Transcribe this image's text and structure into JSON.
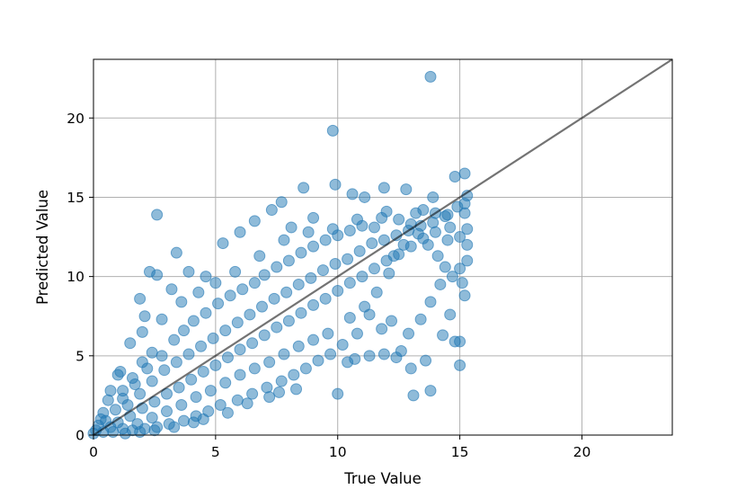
{
  "chart_data": {
    "type": "scatter",
    "title": "",
    "xlabel": "True Value",
    "ylabel": "Predicted Value",
    "xlim": [
      0,
      23.7
    ],
    "ylim": [
      0,
      23.7
    ],
    "x_ticks": [
      0,
      5,
      10,
      15,
      20
    ],
    "y_ticks": [
      0,
      5,
      10,
      15,
      20
    ],
    "grid": true,
    "legend": "none",
    "point_color": "#1f77b4",
    "point_alpha": 0.5,
    "reference_line": {
      "from": [
        0,
        0
      ],
      "to": [
        23.7,
        23.7
      ],
      "color": "#000000",
      "alpha": 0.55
    },
    "series": [
      {
        "values": [
          [
            13.8,
            22.6
          ],
          [
            9.8,
            19.2
          ],
          [
            2.6,
            13.9
          ],
          [
            8.6,
            15.6
          ],
          [
            9.9,
            15.8
          ],
          [
            11.9,
            15.6
          ],
          [
            12.8,
            15.5
          ],
          [
            13.9,
            15.0
          ],
          [
            14.8,
            16.3
          ],
          [
            15.2,
            16.5
          ],
          [
            15.3,
            15.1
          ],
          [
            15.2,
            14.0
          ],
          [
            14.6,
            13.1
          ],
          [
            13.2,
            14.0
          ],
          [
            12.0,
            14.1
          ],
          [
            11.1,
            15.0
          ],
          [
            10.6,
            15.2
          ],
          [
            7.3,
            14.2
          ],
          [
            7.7,
            14.7
          ],
          [
            6.6,
            13.5
          ],
          [
            9.0,
            13.7
          ],
          [
            8.1,
            13.1
          ],
          [
            5.3,
            12.1
          ],
          [
            6.0,
            12.8
          ],
          [
            3.4,
            11.5
          ],
          [
            2.3,
            10.3
          ],
          [
            2.6,
            10.1
          ],
          [
            3.9,
            10.3
          ],
          [
            4.6,
            10.0
          ],
          [
            1.9,
            8.6
          ],
          [
            3.2,
            9.2
          ],
          [
            2.1,
            7.5
          ],
          [
            2.0,
            6.5
          ],
          [
            1.5,
            5.8
          ],
          [
            1.1,
            4.0
          ],
          [
            1.0,
            3.8
          ],
          [
            0.7,
            2.8
          ],
          [
            0.6,
            2.2
          ],
          [
            0.4,
            1.4
          ],
          [
            0.3,
            1.0
          ],
          [
            0.2,
            0.6
          ],
          [
            0.1,
            0.3
          ],
          [
            0.0,
            0.1
          ],
          [
            1.3,
            0.1
          ],
          [
            1.9,
            0.2
          ],
          [
            2.5,
            0.3
          ],
          [
            3.3,
            0.5
          ],
          [
            4.1,
            0.8
          ],
          [
            4.5,
            1.0
          ],
          [
            5.5,
            1.4
          ],
          [
            6.3,
            2.0
          ],
          [
            7.2,
            2.4
          ],
          [
            7.6,
            2.7
          ],
          [
            8.3,
            2.9
          ],
          [
            10.0,
            2.6
          ],
          [
            10.4,
            4.6
          ],
          [
            10.7,
            4.8
          ],
          [
            11.3,
            5.0
          ],
          [
            11.9,
            5.1
          ],
          [
            12.4,
            4.9
          ],
          [
            12.6,
            5.3
          ],
          [
            13.0,
            4.2
          ],
          [
            13.1,
            2.5
          ],
          [
            13.8,
            2.8
          ],
          [
            13.6,
            4.7
          ],
          [
            14.3,
            6.3
          ],
          [
            14.6,
            7.6
          ],
          [
            14.8,
            5.9
          ],
          [
            15.0,
            5.9
          ],
          [
            15.0,
            4.4
          ],
          [
            15.2,
            8.8
          ],
          [
            15.1,
            9.6
          ],
          [
            14.7,
            10.0
          ],
          [
            14.4,
            10.6
          ],
          [
            14.1,
            11.3
          ],
          [
            13.7,
            12.0
          ],
          [
            13.3,
            12.7
          ],
          [
            12.7,
            12.0
          ],
          [
            12.3,
            11.3
          ],
          [
            12.1,
            10.2
          ],
          [
            11.6,
            9.0
          ],
          [
            11.1,
            8.1
          ],
          [
            10.5,
            7.4
          ],
          [
            9.6,
            6.4
          ],
          [
            9.0,
            6.0
          ],
          [
            8.4,
            5.6
          ],
          [
            7.8,
            5.1
          ],
          [
            7.2,
            4.6
          ],
          [
            6.6,
            4.2
          ],
          [
            6.0,
            3.8
          ],
          [
            5.4,
            3.3
          ],
          [
            4.8,
            2.8
          ],
          [
            4.2,
            2.4
          ],
          [
            3.6,
            1.9
          ],
          [
            3.0,
            1.5
          ],
          [
            2.4,
            1.1
          ],
          [
            1.8,
            0.7
          ],
          [
            1.2,
            0.4
          ],
          [
            0.8,
            0.2
          ],
          [
            1.7,
            3.2
          ],
          [
            2.2,
            4.2
          ],
          [
            2.8,
            5.0
          ],
          [
            3.3,
            6.0
          ],
          [
            3.7,
            6.6
          ],
          [
            4.1,
            7.2
          ],
          [
            4.6,
            7.7
          ],
          [
            5.1,
            8.3
          ],
          [
            5.6,
            8.8
          ],
          [
            6.1,
            9.2
          ],
          [
            6.6,
            9.6
          ],
          [
            7.0,
            10.1
          ],
          [
            7.5,
            10.6
          ],
          [
            8.0,
            11.0
          ],
          [
            8.5,
            11.5
          ],
          [
            9.0,
            11.9
          ],
          [
            9.5,
            12.3
          ],
          [
            10.0,
            12.6
          ],
          [
            10.5,
            12.9
          ],
          [
            11.0,
            13.2
          ],
          [
            11.5,
            13.1
          ],
          [
            12.5,
            13.6
          ],
          [
            13.0,
            13.3
          ],
          [
            13.5,
            14.2
          ],
          [
            14.0,
            14.0
          ],
          [
            14.5,
            13.9
          ],
          [
            15.3,
            13.0
          ],
          [
            15.3,
            12.0
          ],
          [
            15.3,
            11.0
          ],
          [
            15.0,
            10.5
          ],
          [
            14.2,
            9.5
          ],
          [
            13.8,
            8.4
          ],
          [
            13.4,
            7.3
          ],
          [
            12.9,
            6.4
          ],
          [
            12.2,
            7.2
          ],
          [
            11.8,
            6.7
          ],
          [
            11.3,
            7.6
          ],
          [
            10.8,
            6.4
          ],
          [
            10.2,
            5.7
          ],
          [
            9.7,
            5.1
          ],
          [
            9.2,
            4.7
          ],
          [
            8.7,
            4.2
          ],
          [
            8.2,
            3.8
          ],
          [
            7.7,
            3.4
          ],
          [
            7.1,
            3.0
          ],
          [
            6.5,
            2.6
          ],
          [
            5.9,
            2.2
          ],
          [
            5.2,
            1.9
          ],
          [
            4.7,
            1.5
          ],
          [
            4.2,
            1.2
          ],
          [
            3.7,
            0.9
          ],
          [
            3.1,
            0.7
          ],
          [
            2.6,
            0.5
          ],
          [
            2.1,
            0.4
          ],
          [
            1.6,
            0.3
          ],
          [
            1.4,
            1.9
          ],
          [
            1.9,
            2.6
          ],
          [
            2.4,
            3.4
          ],
          [
            2.9,
            4.1
          ],
          [
            3.4,
            4.6
          ],
          [
            3.9,
            5.1
          ],
          [
            4.4,
            5.6
          ],
          [
            4.9,
            6.1
          ],
          [
            5.4,
            6.6
          ],
          [
            5.9,
            7.1
          ],
          [
            6.4,
            7.6
          ],
          [
            6.9,
            8.1
          ],
          [
            7.4,
            8.6
          ],
          [
            7.9,
            9.0
          ],
          [
            8.4,
            9.5
          ],
          [
            8.9,
            9.9
          ],
          [
            9.4,
            10.4
          ],
          [
            9.9,
            10.8
          ],
          [
            10.4,
            11.1
          ],
          [
            10.9,
            11.6
          ],
          [
            11.4,
            12.1
          ],
          [
            11.9,
            12.3
          ],
          [
            12.4,
            12.6
          ],
          [
            12.9,
            12.9
          ],
          [
            13.4,
            13.2
          ],
          [
            13.9,
            13.4
          ],
          [
            14.4,
            13.8
          ],
          [
            14.9,
            14.4
          ],
          [
            15.2,
            14.6
          ],
          [
            0.5,
            0.9
          ],
          [
            0.9,
            1.6
          ],
          [
            1.2,
            2.3
          ],
          [
            0.4,
            0.2
          ],
          [
            0.7,
            0.5
          ],
          [
            1.0,
            0.8
          ],
          [
            1.5,
            1.2
          ],
          [
            2.0,
            1.7
          ],
          [
            2.5,
            2.1
          ],
          [
            3.0,
            2.6
          ],
          [
            3.5,
            3.0
          ],
          [
            4.0,
            3.5
          ],
          [
            4.5,
            4.0
          ],
          [
            5.0,
            4.4
          ],
          [
            5.5,
            4.9
          ],
          [
            6.0,
            5.4
          ],
          [
            6.5,
            5.8
          ],
          [
            7.0,
            6.3
          ],
          [
            7.5,
            6.8
          ],
          [
            8.0,
            7.2
          ],
          [
            8.5,
            7.7
          ],
          [
            9.0,
            8.2
          ],
          [
            9.5,
            8.6
          ],
          [
            10.0,
            9.1
          ],
          [
            10.5,
            9.6
          ],
          [
            11.0,
            10.0
          ],
          [
            11.5,
            10.5
          ],
          [
            12.0,
            11.0
          ],
          [
            12.5,
            11.4
          ],
          [
            13.0,
            11.9
          ],
          [
            13.5,
            12.4
          ],
          [
            14.0,
            12.8
          ],
          [
            14.5,
            12.3
          ],
          [
            15.0,
            12.5
          ],
          [
            2.8,
            7.3
          ],
          [
            3.6,
            8.4
          ],
          [
            4.3,
            9.0
          ],
          [
            5.0,
            9.6
          ],
          [
            5.8,
            10.3
          ],
          [
            6.8,
            11.3
          ],
          [
            7.8,
            12.3
          ],
          [
            8.8,
            12.8
          ],
          [
            9.8,
            13.0
          ],
          [
            10.8,
            13.6
          ],
          [
            11.8,
            13.7
          ],
          [
            1.2,
            2.8
          ],
          [
            1.6,
            3.6
          ],
          [
            2.0,
            4.6
          ],
          [
            2.4,
            5.2
          ]
        ]
      }
    ]
  }
}
